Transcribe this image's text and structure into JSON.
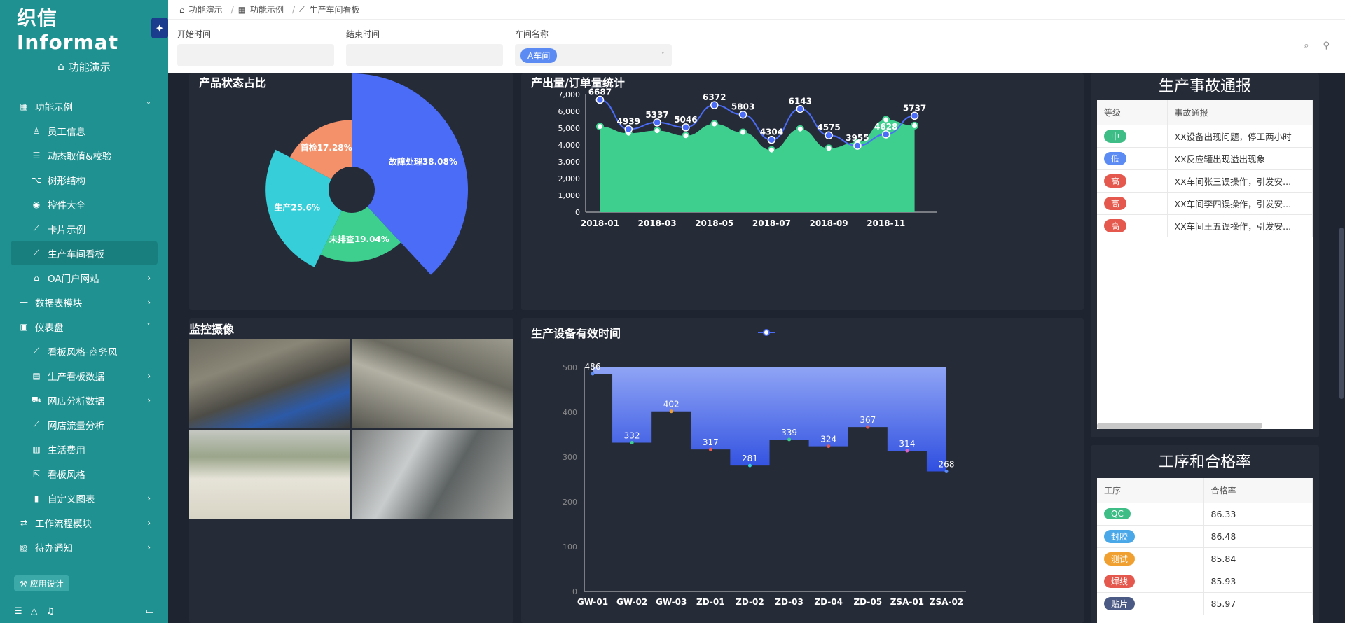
{
  "app": {
    "brand": "织信 Informat",
    "home_link": "功能演示",
    "app_design": "应用设计"
  },
  "sidebar": {
    "items": [
      {
        "label": "功能示例",
        "icon": "grid-icon",
        "level": 0,
        "arrow": "˅"
      },
      {
        "label": "员工信息",
        "icon": "person-icon",
        "level": 1
      },
      {
        "label": "动态取值&校验",
        "icon": "sliders-icon",
        "level": 1
      },
      {
        "label": "树形结构",
        "icon": "tree-icon",
        "level": 1
      },
      {
        "label": "控件大全",
        "icon": "target-icon",
        "level": 1
      },
      {
        "label": "卡片示例",
        "icon": "chart-line-icon",
        "level": 1
      },
      {
        "label": "生产车间看板",
        "icon": "chart-line-icon",
        "level": 1,
        "active": true
      },
      {
        "label": "OA门户网站",
        "icon": "home-icon",
        "level": 1,
        "arrow": "›"
      },
      {
        "label": "数据表模块",
        "icon": "dash-icon",
        "level": 0,
        "arrow": "›"
      },
      {
        "label": "仪表盘",
        "icon": "dashboard-icon",
        "level": 0,
        "arrow": "˅"
      },
      {
        "label": "看板风格-商务风",
        "icon": "chart-line-icon",
        "level": 1
      },
      {
        "label": "生产看板数据",
        "icon": "report-icon",
        "level": 1,
        "arrow": "›"
      },
      {
        "label": "网店分析数据",
        "icon": "cart-icon",
        "level": 1,
        "arrow": "›"
      },
      {
        "label": "网店流量分析",
        "icon": "chart-line-icon",
        "level": 1
      },
      {
        "label": "生活费用",
        "icon": "table-icon",
        "level": 1
      },
      {
        "label": "看板风格",
        "icon": "external-icon",
        "level": 1
      },
      {
        "label": "自定义图表",
        "icon": "bar-icon",
        "level": 1,
        "arrow": "›"
      },
      {
        "label": "工作流程模块",
        "icon": "flow-icon",
        "level": 0,
        "arrow": "›"
      },
      {
        "label": "待办通知",
        "icon": "clipboard-icon",
        "level": 0,
        "arrow": "›"
      }
    ]
  },
  "breadcrumb": {
    "items": [
      "功能演示",
      "功能示例",
      "生产车间看板"
    ]
  },
  "filters": {
    "start_label": "开始时间",
    "end_label": "结束时间",
    "workshop_label": "车间名称",
    "workshop_value": "A车间"
  },
  "panels": {
    "pie_title": "产品状态占比",
    "line_title": "产出量/订单量统计",
    "camera_title": "监控摄像",
    "step_title": "生产设备有效时间",
    "accident_title": "生产事故通报",
    "quality_title": "工序和合格率"
  },
  "accident_table": {
    "headers": [
      "等级",
      "事故通报"
    ],
    "rows": [
      {
        "level": "中",
        "color": "#3ebd86",
        "text": "XX设备出现问题，停工两小时"
      },
      {
        "level": "低",
        "color": "#5b8bf3",
        "text": "XX反应罐出现溢出现象"
      },
      {
        "level": "高",
        "color": "#e4584d",
        "text": "XX车间张三误操作，引发安..."
      },
      {
        "level": "高",
        "color": "#e4584d",
        "text": "XX车间李四误操作，引发安..."
      },
      {
        "level": "高",
        "color": "#e4584d",
        "text": "XX车间王五误操作，引发安..."
      }
    ]
  },
  "quality_table": {
    "headers": [
      "工序",
      "合格率"
    ],
    "rows": [
      {
        "step": "QC",
        "color": "#3ebd86",
        "rate": "86.33"
      },
      {
        "step": "封胶",
        "color": "#4aa8e8",
        "rate": "86.48"
      },
      {
        "step": "测试",
        "color": "#f0a030",
        "rate": "85.84"
      },
      {
        "step": "焊线",
        "color": "#e4584d",
        "rate": "85.93"
      },
      {
        "step": "贴片",
        "color": "#4a5a85",
        "rate": "85.97"
      }
    ]
  },
  "chart_data": [
    {
      "type": "pie",
      "title": "产品状态占比",
      "slices": [
        {
          "label": "故障处理38.08%",
          "value": 38.08,
          "color": "#4a6cf7",
          "r": 1.0
        },
        {
          "label": "未排查19.04%",
          "value": 19.04,
          "color": "#3ecf8e",
          "r": 0.62
        },
        {
          "label": "生产25.6%",
          "value": 25.6,
          "color": "#36cfd9",
          "r": 0.74
        },
        {
          "label": "首检17.28%",
          "value": 17.28,
          "color": "#f4916b",
          "r": 0.6
        }
      ]
    },
    {
      "type": "line",
      "title": "产出量/订单量统计",
      "categories": [
        "2018-01",
        "2018-02",
        "2018-03",
        "2018-04",
        "2018-05",
        "2018-06",
        "2018-07",
        "2018-08",
        "2018-09",
        "2018-10",
        "2018-11",
        "2018-12"
      ],
      "tick_labels": [
        "2018-01",
        "",
        "2018-03",
        "",
        "2018-05",
        "",
        "2018-07",
        "",
        "2018-09",
        "",
        "2018-11",
        ""
      ],
      "ylim": [
        0,
        7000
      ],
      "yticks": [
        "0",
        "1,000",
        "2,000",
        "3,000",
        "4,000",
        "5,000",
        "6,000",
        "7,000"
      ],
      "series": [
        {
          "values": [
            6687,
            4939,
            5337,
            5046,
            6372,
            5803,
            4304,
            6143,
            4575,
            3955,
            4628,
            5737
          ],
          "color": "#4a6cf7"
        },
        {
          "values": [
            5100,
            4700,
            4850,
            4550,
            5250,
            4750,
            3700,
            4950,
            3800,
            4150,
            5500,
            5150
          ],
          "color": "#3ecf8e"
        }
      ]
    },
    {
      "type": "line",
      "title": "生产设备有效时间",
      "categories": [
        "GW-01",
        "GW-02",
        "GW-03",
        "ZD-01",
        "ZD-02",
        "ZD-03",
        "ZD-04",
        "ZD-05",
        "ZSA-01",
        "ZSA-02"
      ],
      "ylim": [
        0,
        500
      ],
      "yticks": [
        "0",
        "100",
        "200",
        "300",
        "400",
        "500"
      ],
      "series": [
        {
          "values": [
            486,
            332,
            402,
            317,
            281,
            339,
            324,
            367,
            314,
            268
          ],
          "color": "#4a6cf7"
        }
      ]
    }
  ]
}
